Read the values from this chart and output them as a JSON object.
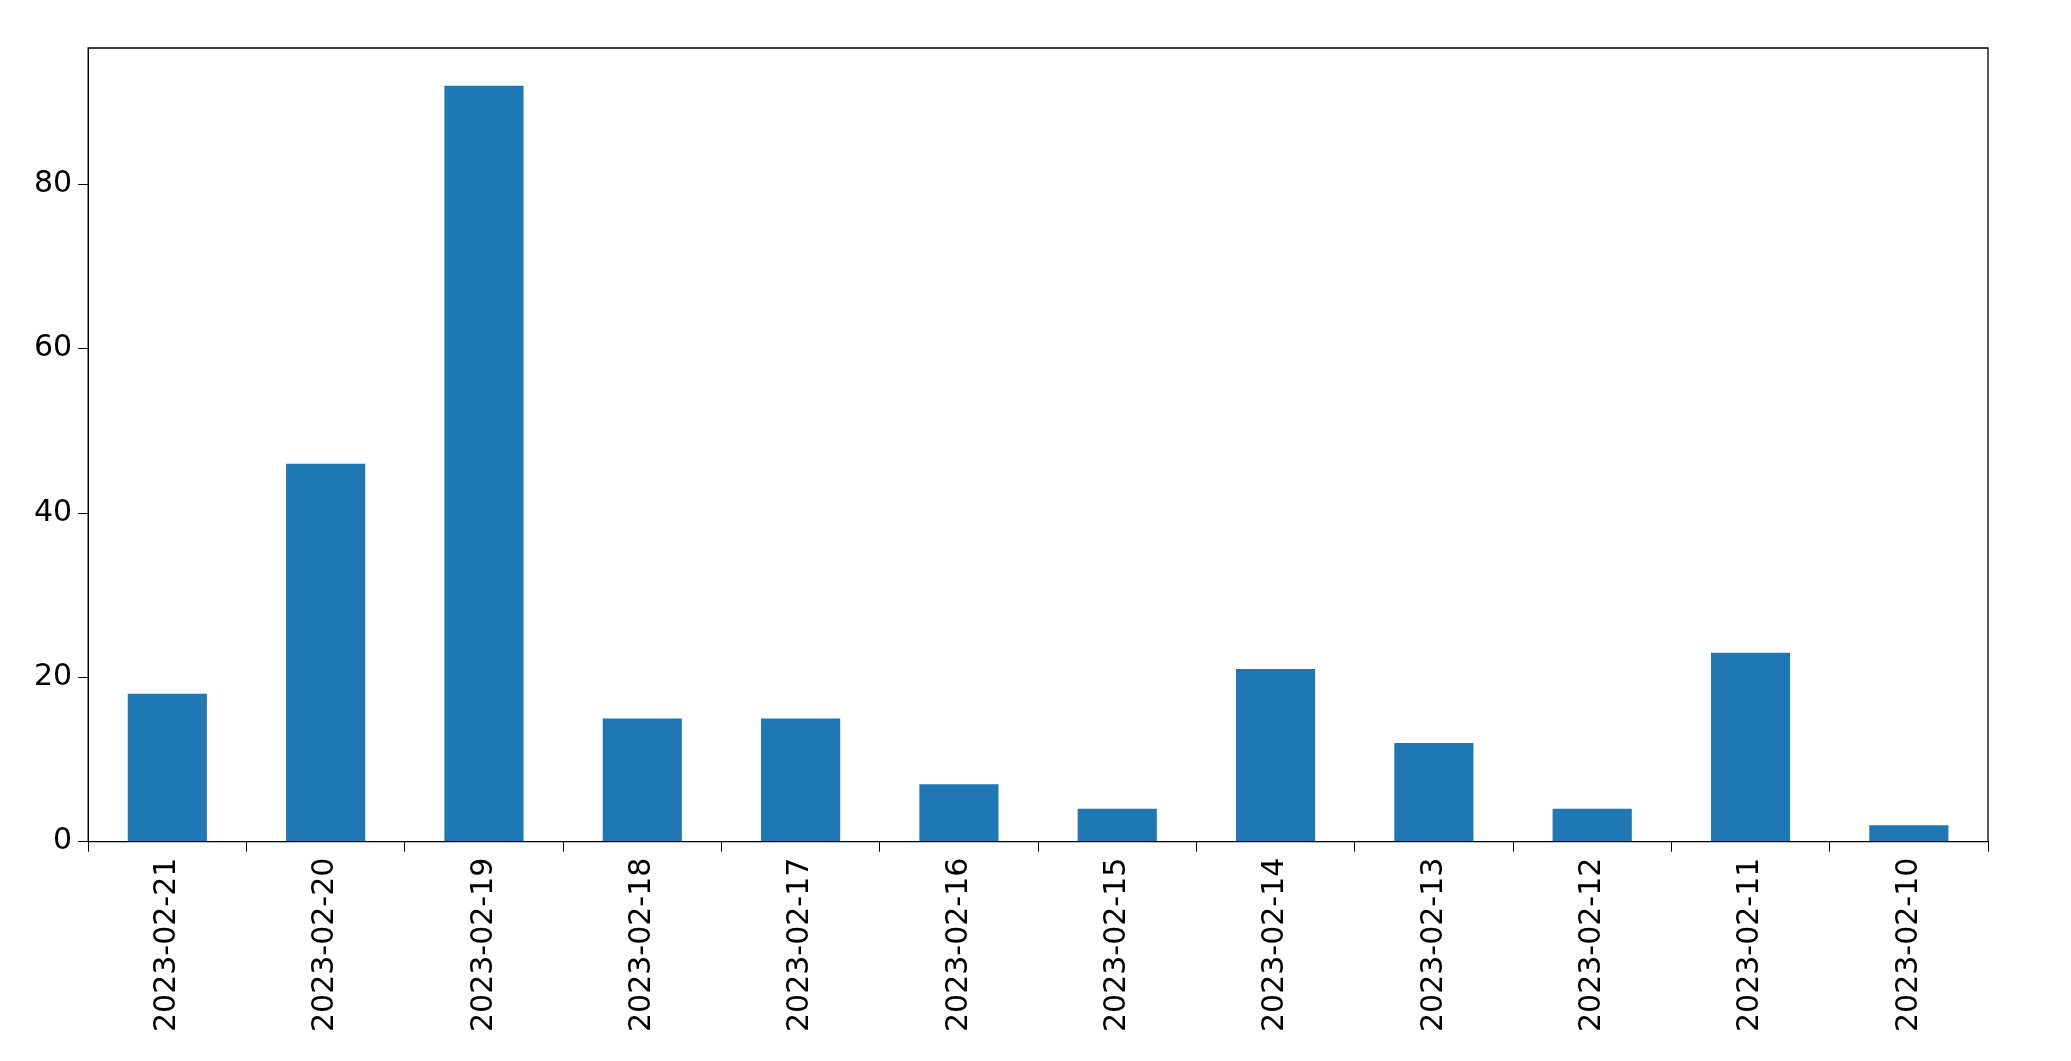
{
  "chart_data": {
    "type": "bar",
    "categories": [
      "2023-02-21",
      "2023-02-20",
      "2023-02-19",
      "2023-02-18",
      "2023-02-17",
      "2023-02-16",
      "2023-02-15",
      "2023-02-14",
      "2023-02-13",
      "2023-02-12",
      "2023-02-11",
      "2023-02-10"
    ],
    "values": [
      18,
      46,
      92,
      15,
      15,
      7,
      4,
      21,
      12,
      4,
      23,
      2
    ],
    "color": "#1f77b4",
    "ylim": [
      0,
      96.6
    ],
    "yticks": [
      0,
      20,
      40,
      60,
      80
    ],
    "grid": false,
    "legend": false
  }
}
